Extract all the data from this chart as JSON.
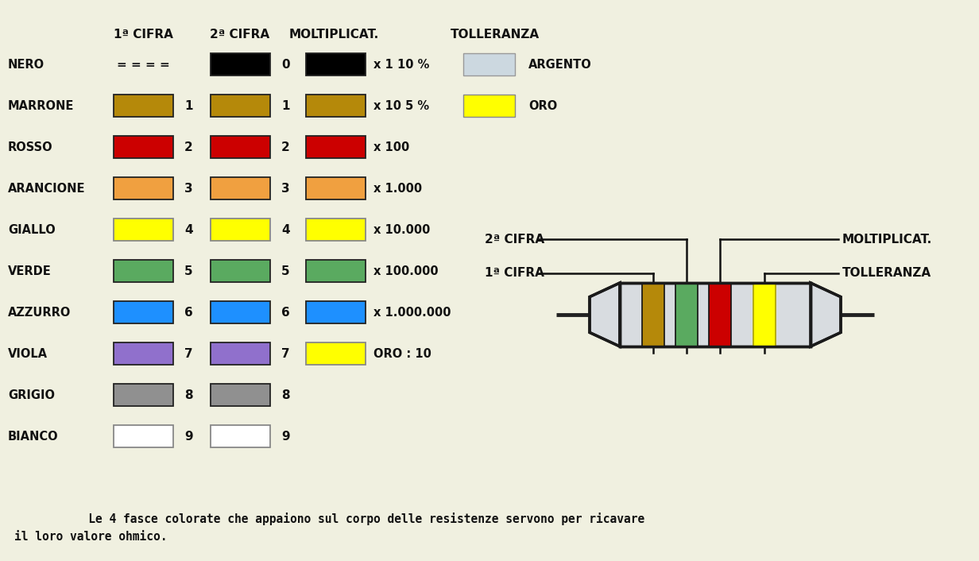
{
  "bg_color": "#f0f0e0",
  "colors": {
    "NERO": "#000000",
    "MARRONE": "#b5890a",
    "ROSSO": "#cc0000",
    "ARANCIONE": "#f0a040",
    "GIALLO": "#ffff00",
    "VERDE": "#5aaa60",
    "AZZURRO": "#1e90ff",
    "VIOLA": "#9070cc",
    "GRIGIO": "#909090",
    "BIANCO": "#ffffff"
  },
  "rows": [
    {
      "name": "NERO",
      "cifra1": null,
      "cifra2": "0",
      "mult": "x 1",
      "mult_color": "#000000"
    },
    {
      "name": "MARRONE",
      "cifra1": "1",
      "cifra2": "1",
      "mult": "x 10",
      "mult_color": "#b5890a"
    },
    {
      "name": "ROSSO",
      "cifra1": "2",
      "cifra2": "2",
      "mult": "x 100",
      "mult_color": "#cc0000"
    },
    {
      "name": "ARANCIONE",
      "cifra1": "3",
      "cifra2": "3",
      "mult": "x 1.000",
      "mult_color": "#f0a040"
    },
    {
      "name": "GIALLO",
      "cifra1": "4",
      "cifra2": "4",
      "mult": "x 10.000",
      "mult_color": "#ffff00"
    },
    {
      "name": "VERDE",
      "cifra1": "5",
      "cifra2": "5",
      "mult": "x 100.000",
      "mult_color": "#5aaa60"
    },
    {
      "name": "AZZURRO",
      "cifra1": "6",
      "cifra2": "6",
      "mult": "x 1.000.000",
      "mult_color": "#1e90ff"
    },
    {
      "name": "VIOLA",
      "cifra1": "7",
      "cifra2": "7",
      "mult": "ORO : 10",
      "mult_color": "#ffff00"
    },
    {
      "name": "GRIGIO",
      "cifra1": "8",
      "cifra2": "8",
      "mult": null,
      "mult_color": null
    },
    {
      "name": "BIANCO",
      "cifra1": "9",
      "cifra2": "9",
      "mult": null,
      "mult_color": null
    }
  ],
  "tolerance": [
    {
      "pct": "10 %",
      "color": "#ccd8e0",
      "label": "ARGENTO"
    },
    {
      "pct": "5 %",
      "color": "#ffff00",
      "label": "ORO"
    }
  ],
  "col_headers": [
    "1ª CIFRA",
    "2ª CIFRA",
    "MOLTIPLICAT.",
    "TOLLERANZA"
  ],
  "resistor_bands": [
    "#b5890a",
    "#5aaa60",
    "#cc0000",
    "#ffff00"
  ],
  "resistor_labels_left": [
    "2ª CIFRA",
    "1ª CIFRA"
  ],
  "resistor_labels_right": [
    "MOLTIPLICAT.",
    "TOLLERANZA"
  ],
  "footer_line1": "   Le 4 fasce colorate che appaiono sul corpo delle resistenze servono per ricavare",
  "footer_line2": "il loro valore ohmico."
}
